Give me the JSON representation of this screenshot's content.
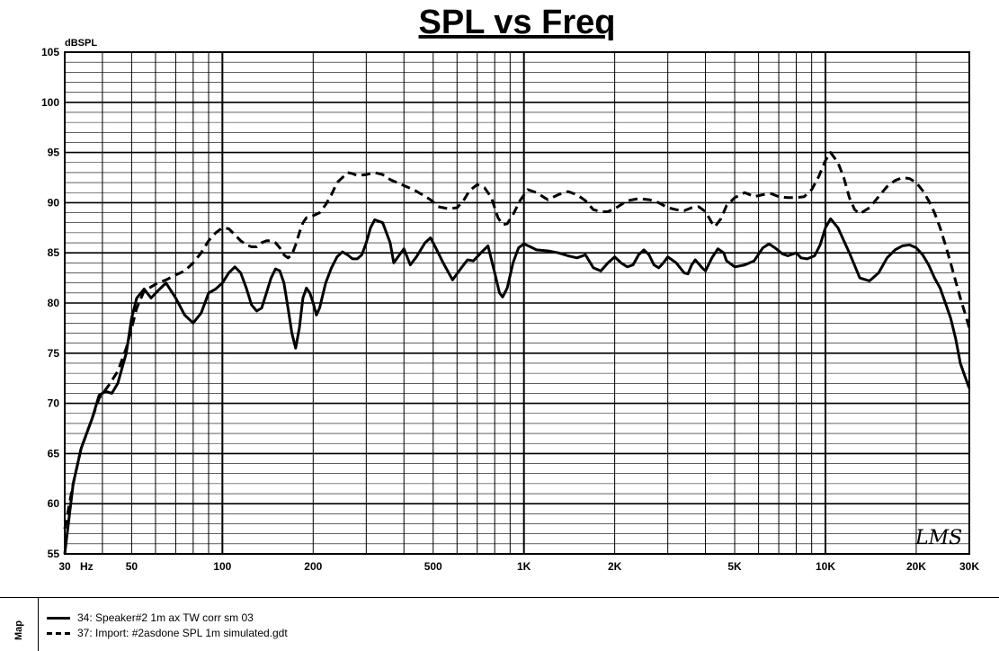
{
  "chart_data": {
    "type": "line",
    "title": "SPL vs Freq",
    "ylabel": "dBSPL",
    "xlabel": "",
    "x_scale": "log",
    "xlim": [
      30,
      30000
    ],
    "ylim": [
      55,
      105
    ],
    "grid": true,
    "y_ticks": [
      55,
      60,
      65,
      70,
      75,
      80,
      85,
      90,
      95,
      100,
      105
    ],
    "x_tick_labels": [
      {
        "value": 30,
        "label": "30"
      },
      {
        "value": 50,
        "label": "50"
      },
      {
        "value": 100,
        "label": "100"
      },
      {
        "value": 200,
        "label": "200"
      },
      {
        "value": 500,
        "label": "500"
      },
      {
        "value": 1000,
        "label": "1K"
      },
      {
        "value": 2000,
        "label": "2K"
      },
      {
        "value": 5000,
        "label": "5K"
      },
      {
        "value": 10000,
        "label": "10K"
      },
      {
        "value": 20000,
        "label": "20K"
      },
      {
        "value": 30000,
        "label": "30K"
      }
    ],
    "x_unit_label": "Hz",
    "watermark": "LMS",
    "series": [
      {
        "name": "34:  Speaker#2 1m ax TW corr sm 03",
        "style": "solid",
        "points": [
          [
            30,
            55
          ],
          [
            32,
            62
          ],
          [
            34,
            65.5
          ],
          [
            37,
            68.5
          ],
          [
            39,
            70.8
          ],
          [
            41,
            71.2
          ],
          [
            43,
            71
          ],
          [
            45,
            72
          ],
          [
            48,
            75
          ],
          [
            50,
            78.5
          ],
          [
            52,
            80.5
          ],
          [
            55,
            81.4
          ],
          [
            58,
            80.5
          ],
          [
            61,
            81.2
          ],
          [
            65,
            82
          ],
          [
            70,
            80.5
          ],
          [
            75,
            78.8
          ],
          [
            80,
            78
          ],
          [
            85,
            79
          ],
          [
            90,
            81
          ],
          [
            95,
            81.4
          ],
          [
            100,
            82
          ],
          [
            105,
            83
          ],
          [
            110,
            83.6
          ],
          [
            115,
            83
          ],
          [
            120,
            81.5
          ],
          [
            125,
            79.8
          ],
          [
            130,
            79.2
          ],
          [
            135,
            79.5
          ],
          [
            140,
            81
          ],
          [
            145,
            82.5
          ],
          [
            150,
            83.4
          ],
          [
            155,
            83.2
          ],
          [
            160,
            82
          ],
          [
            165,
            79.5
          ],
          [
            170,
            77
          ],
          [
            175,
            75.5
          ],
          [
            180,
            77.5
          ],
          [
            185,
            80.5
          ],
          [
            190,
            81.5
          ],
          [
            195,
            81
          ],
          [
            200,
            80
          ],
          [
            205,
            78.8
          ],
          [
            210,
            79.5
          ],
          [
            220,
            82
          ],
          [
            230,
            83.5
          ],
          [
            240,
            84.6
          ],
          [
            250,
            85.1
          ],
          [
            260,
            84.8
          ],
          [
            270,
            84.4
          ],
          [
            280,
            84.4
          ],
          [
            290,
            84.8
          ],
          [
            300,
            86
          ],
          [
            310,
            87.5
          ],
          [
            320,
            88.3
          ],
          [
            340,
            88
          ],
          [
            360,
            86
          ],
          [
            370,
            84
          ],
          [
            380,
            84.5
          ],
          [
            400,
            85.4
          ],
          [
            420,
            83.8
          ],
          [
            440,
            84.6
          ],
          [
            470,
            86
          ],
          [
            490,
            86.5
          ],
          [
            510,
            85.5
          ],
          [
            540,
            84
          ],
          [
            580,
            82.3
          ],
          [
            620,
            83.5
          ],
          [
            650,
            84.3
          ],
          [
            680,
            84.2
          ],
          [
            720,
            85
          ],
          [
            760,
            85.7
          ],
          [
            800,
            83
          ],
          [
            830,
            81
          ],
          [
            850,
            80.6
          ],
          [
            880,
            81.5
          ],
          [
            920,
            84
          ],
          [
            960,
            85.5
          ],
          [
            1000,
            85.9
          ],
          [
            1050,
            85.6
          ],
          [
            1100,
            85.3
          ],
          [
            1200,
            85.2
          ],
          [
            1300,
            85
          ],
          [
            1400,
            84.7
          ],
          [
            1500,
            84.5
          ],
          [
            1600,
            84.8
          ],
          [
            1700,
            83.5
          ],
          [
            1800,
            83.2
          ],
          [
            1900,
            84
          ],
          [
            2000,
            84.6
          ],
          [
            2100,
            84
          ],
          [
            2200,
            83.6
          ],
          [
            2300,
            83.8
          ],
          [
            2400,
            84.8
          ],
          [
            2500,
            85.3
          ],
          [
            2600,
            84.8
          ],
          [
            2700,
            83.8
          ],
          [
            2800,
            83.5
          ],
          [
            2900,
            84
          ],
          [
            3000,
            84.6
          ],
          [
            3200,
            84
          ],
          [
            3400,
            83
          ],
          [
            3500,
            82.9
          ],
          [
            3600,
            83.8
          ],
          [
            3700,
            84.3
          ],
          [
            3900,
            83.5
          ],
          [
            4000,
            83.2
          ],
          [
            4200,
            84.5
          ],
          [
            4400,
            85.4
          ],
          [
            4600,
            85
          ],
          [
            4700,
            84.2
          ],
          [
            5000,
            83.6
          ],
          [
            5400,
            83.8
          ],
          [
            5800,
            84.2
          ],
          [
            6200,
            85.5
          ],
          [
            6500,
            85.9
          ],
          [
            6800,
            85.5
          ],
          [
            7200,
            84.9
          ],
          [
            7500,
            84.7
          ],
          [
            8000,
            85
          ],
          [
            8300,
            84.5
          ],
          [
            8700,
            84.4
          ],
          [
            9200,
            84.7
          ],
          [
            9600,
            85.8
          ],
          [
            10000,
            87.5
          ],
          [
            10400,
            88.4
          ],
          [
            11000,
            87.5
          ],
          [
            12000,
            85
          ],
          [
            13000,
            82.5
          ],
          [
            14000,
            82.2
          ],
          [
            15000,
            83
          ],
          [
            16000,
            84.5
          ],
          [
            17000,
            85.3
          ],
          [
            18000,
            85.7
          ],
          [
            19000,
            85.8
          ],
          [
            20000,
            85.5
          ],
          [
            21000,
            84.8
          ],
          [
            22000,
            83.8
          ],
          [
            23000,
            82.5
          ],
          [
            24000,
            81.5
          ],
          [
            25000,
            80
          ],
          [
            26000,
            78.5
          ],
          [
            27000,
            76.5
          ],
          [
            28000,
            74
          ],
          [
            29000,
            72.7
          ],
          [
            30000,
            71.5
          ]
        ]
      },
      {
        "name": "37:  Import: #2asdone SPL 1m simulated.gdt",
        "style": "dashed",
        "points": [
          [
            30,
            57.5
          ],
          [
            32,
            62
          ],
          [
            34,
            65.5
          ],
          [
            37,
            68.5
          ],
          [
            39,
            70.5
          ],
          [
            42,
            71.8
          ],
          [
            45,
            73.2
          ],
          [
            48,
            75.5
          ],
          [
            50,
            77.5
          ],
          [
            52,
            79.5
          ],
          [
            55,
            81.2
          ],
          [
            58,
            81.6
          ],
          [
            61,
            82
          ],
          [
            65,
            82.3
          ],
          [
            70,
            82.8
          ],
          [
            75,
            83.2
          ],
          [
            80,
            84
          ],
          [
            85,
            85
          ],
          [
            90,
            86.2
          ],
          [
            95,
            87
          ],
          [
            100,
            87.5
          ],
          [
            105,
            87.4
          ],
          [
            110,
            86.8
          ],
          [
            115,
            86.2
          ],
          [
            120,
            85.8
          ],
          [
            125,
            85.6
          ],
          [
            130,
            85.6
          ],
          [
            135,
            86
          ],
          [
            140,
            86.2
          ],
          [
            145,
            86.2
          ],
          [
            150,
            86
          ],
          [
            155,
            85.5
          ],
          [
            160,
            84.8
          ],
          [
            165,
            84.5
          ],
          [
            170,
            84.8
          ],
          [
            175,
            85.8
          ],
          [
            180,
            87
          ],
          [
            185,
            88
          ],
          [
            190,
            88.5
          ],
          [
            200,
            88.7
          ],
          [
            210,
            89
          ],
          [
            220,
            89.8
          ],
          [
            230,
            90.8
          ],
          [
            240,
            92
          ],
          [
            250,
            92.5
          ],
          [
            260,
            93
          ],
          [
            270,
            92.9
          ],
          [
            280,
            92.7
          ],
          [
            300,
            92.8
          ],
          [
            320,
            93
          ],
          [
            340,
            92.8
          ],
          [
            360,
            92.3
          ],
          [
            380,
            92
          ],
          [
            400,
            91.7
          ],
          [
            430,
            91.3
          ],
          [
            460,
            90.8
          ],
          [
            490,
            90.3
          ],
          [
            520,
            89.6
          ],
          [
            560,
            89.4
          ],
          [
            600,
            89.5
          ],
          [
            630,
            90.2
          ],
          [
            660,
            91.2
          ],
          [
            700,
            91.8
          ],
          [
            740,
            91.5
          ],
          [
            780,
            90.5
          ],
          [
            820,
            88.5
          ],
          [
            850,
            87.8
          ],
          [
            880,
            87.9
          ],
          [
            920,
            88.8
          ],
          [
            970,
            90.2
          ],
          [
            1030,
            91.3
          ],
          [
            1100,
            91
          ],
          [
            1200,
            90.3
          ],
          [
            1300,
            90.8
          ],
          [
            1400,
            91.1
          ],
          [
            1500,
            90.8
          ],
          [
            1600,
            90.2
          ],
          [
            1700,
            89.3
          ],
          [
            1800,
            89.1
          ],
          [
            1900,
            89.1
          ],
          [
            2000,
            89.4
          ],
          [
            2100,
            89.8
          ],
          [
            2200,
            90.2
          ],
          [
            2400,
            90.4
          ],
          [
            2600,
            90.3
          ],
          [
            2800,
            90
          ],
          [
            3000,
            89.5
          ],
          [
            3200,
            89.3
          ],
          [
            3400,
            89.2
          ],
          [
            3600,
            89.5
          ],
          [
            3800,
            89.6
          ],
          [
            4000,
            89.1
          ],
          [
            4200,
            88
          ],
          [
            4300,
            87.6
          ],
          [
            4500,
            88.4
          ],
          [
            4700,
            89.7
          ],
          [
            5000,
            90.5
          ],
          [
            5400,
            91
          ],
          [
            5800,
            90.6
          ],
          [
            6200,
            90.8
          ],
          [
            6600,
            90.9
          ],
          [
            7000,
            90.6
          ],
          [
            7500,
            90.5
          ],
          [
            8000,
            90.5
          ],
          [
            8500,
            90.6
          ],
          [
            9000,
            91.3
          ],
          [
            9500,
            92.6
          ],
          [
            10000,
            94.2
          ],
          [
            10400,
            95
          ],
          [
            11000,
            94
          ],
          [
            11500,
            92.5
          ],
          [
            12000,
            90.5
          ],
          [
            12500,
            89.3
          ],
          [
            13000,
            88.9
          ],
          [
            14000,
            89.5
          ],
          [
            15000,
            90.6
          ],
          [
            16000,
            91.6
          ],
          [
            17000,
            92.2
          ],
          [
            18000,
            92.5
          ],
          [
            19000,
            92.4
          ],
          [
            20000,
            92
          ],
          [
            21000,
            91.2
          ],
          [
            22000,
            90.2
          ],
          [
            23000,
            89
          ],
          [
            24000,
            87.5
          ],
          [
            25000,
            85.8
          ],
          [
            26000,
            84
          ],
          [
            27000,
            82.2
          ],
          [
            28000,
            80.5
          ],
          [
            29000,
            79
          ],
          [
            30000,
            77.5
          ]
        ]
      }
    ]
  },
  "legend": {
    "tab_label": "Map",
    "entries": [
      {
        "label": "34:  Speaker#2 1m ax TW corr sm 03"
      },
      {
        "label": "37:  Import: #2asdone SPL 1m simulated.gdt"
      }
    ]
  }
}
